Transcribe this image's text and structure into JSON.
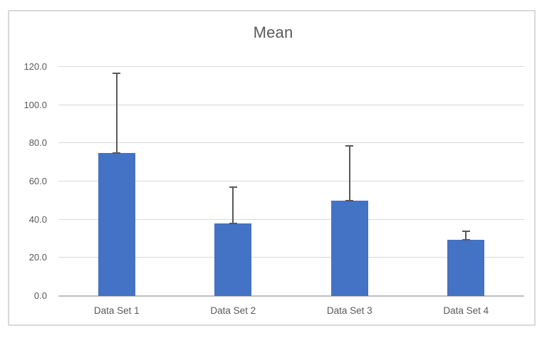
{
  "chart_data": {
    "type": "bar",
    "title": "Mean",
    "categories": [
      "Data Set 1",
      "Data Set 2",
      "Data Set 3",
      "Data Set 4"
    ],
    "values": [
      75,
      38,
      50,
      29.5
    ],
    "errors_plus": [
      41.5,
      19,
      28.8,
      4.5
    ],
    "xlabel": "",
    "ylabel": "",
    "ylim": [
      0,
      120
    ],
    "ytick_step": 20,
    "yticks": [
      {
        "value": 0,
        "label": "0.0"
      },
      {
        "value": 20,
        "label": "20.0"
      },
      {
        "value": 40,
        "label": "40.0"
      },
      {
        "value": 60,
        "label": "60.0"
      },
      {
        "value": 80,
        "label": "80.0"
      },
      {
        "value": 100,
        "label": "100.0"
      },
      {
        "value": 120,
        "label": "120.0"
      }
    ],
    "grid": true,
    "legend": "none",
    "colors": {
      "bar_fill": "#4472C4",
      "error_bar": "#595959",
      "gridline": "#d9d9d9",
      "axis_line": "#bfbfbf",
      "text": "#595959",
      "chart_border": "#d9d9d9",
      "background": "#ffffff"
    }
  }
}
